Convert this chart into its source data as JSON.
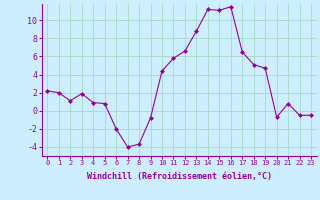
{
  "x": [
    0,
    1,
    2,
    3,
    4,
    5,
    6,
    7,
    8,
    9,
    10,
    11,
    12,
    13,
    14,
    15,
    16,
    17,
    18,
    19,
    20,
    21,
    22,
    23
  ],
  "y": [
    2.2,
    2.0,
    1.1,
    1.9,
    0.9,
    0.8,
    -2.0,
    -4.0,
    -3.7,
    -0.8,
    4.4,
    5.8,
    6.6,
    8.8,
    11.2,
    11.1,
    11.5,
    6.5,
    5.1,
    4.7,
    -0.7,
    0.8,
    -0.5,
    -0.5
  ],
  "line_color": "#990099",
  "marker": "D",
  "marker_size": 2,
  "bg_color": "#cceeff",
  "grid_color": "#aaddcc",
  "xlabel": "Windchill (Refroidissement éolien,°C)",
  "xlabel_color": "#990099",
  "tick_color": "#990099",
  "label_color": "#990099",
  "ylim": [
    -5,
    11.8
  ],
  "xlim": [
    -0.5,
    23.5
  ],
  "yticks": [
    -4,
    -2,
    0,
    2,
    4,
    6,
    8,
    10
  ],
  "xticks": [
    0,
    1,
    2,
    3,
    4,
    5,
    6,
    7,
    8,
    9,
    10,
    11,
    12,
    13,
    14,
    15,
    16,
    17,
    18,
    19,
    20,
    21,
    22,
    23
  ],
  "xlabel_fontsize": 6.0,
  "xtick_fontsize": 5.0,
  "ytick_fontsize": 6.0
}
